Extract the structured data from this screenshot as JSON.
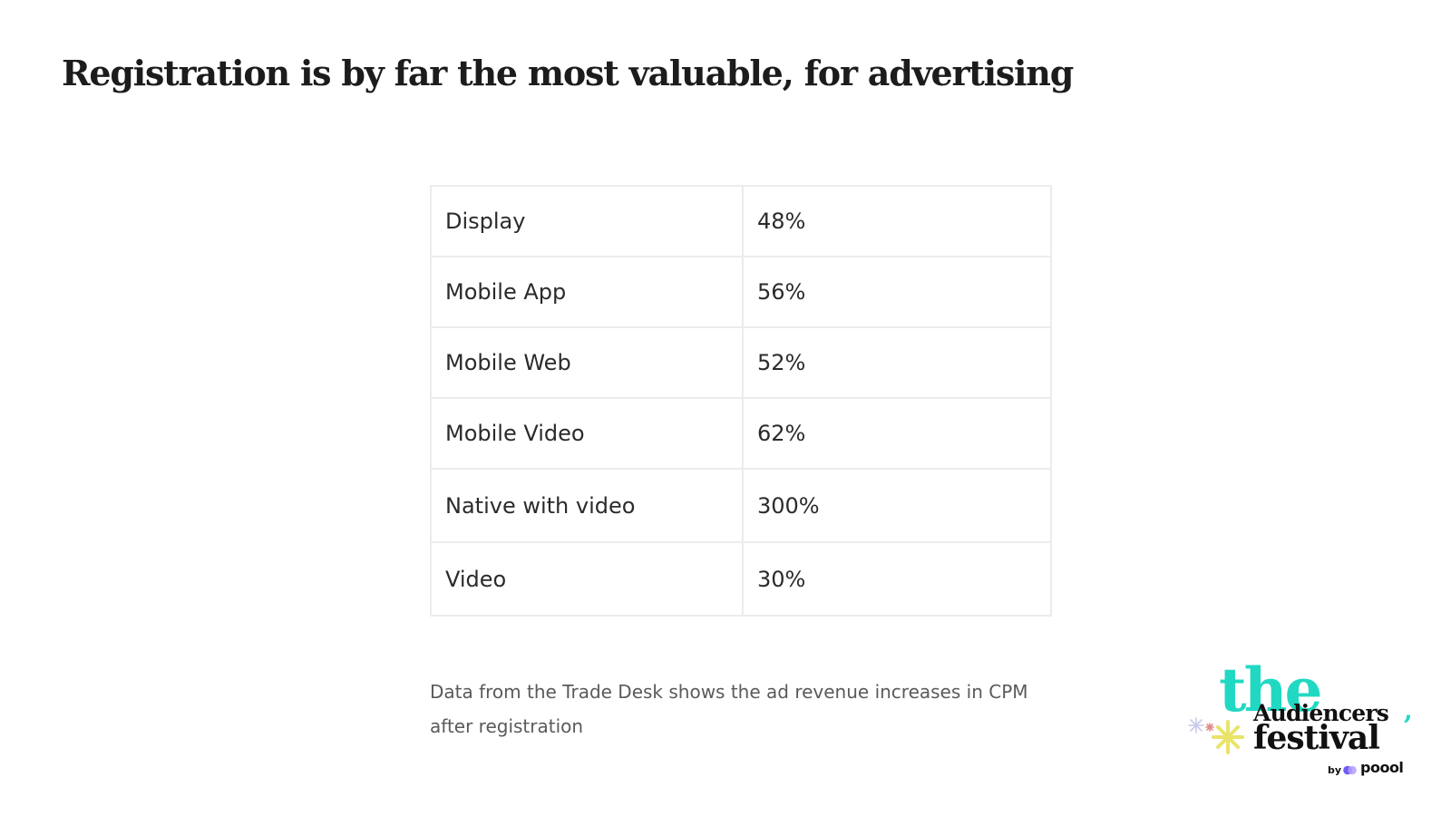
{
  "slide": {
    "title": "Registration is by far the most valuable, for advertising"
  },
  "table": {
    "rows": [
      {
        "label": "Display",
        "value": "48%"
      },
      {
        "label": "Mobile App",
        "value": "56%"
      },
      {
        "label": "Mobile Web",
        "value": "52%"
      },
      {
        "label": "Mobile Video",
        "value": "62%"
      },
      {
        "label": "Native with video",
        "value": "300%"
      },
      {
        "label": "Video",
        "value": "30%"
      }
    ]
  },
  "caption": "Data from the Trade Desk shows the ad revenue increases in CPM after registration",
  "logo": {
    "the": "the",
    "audiencers": "Audiencers",
    "comma": ",",
    "festival": "festival",
    "by": "by",
    "brand": "poool",
    "accent_color": "#21d9c3",
    "sparkle_color": "#e9e36a",
    "icons": [
      "sparkle-icon",
      "poool-logo-icon"
    ]
  }
}
